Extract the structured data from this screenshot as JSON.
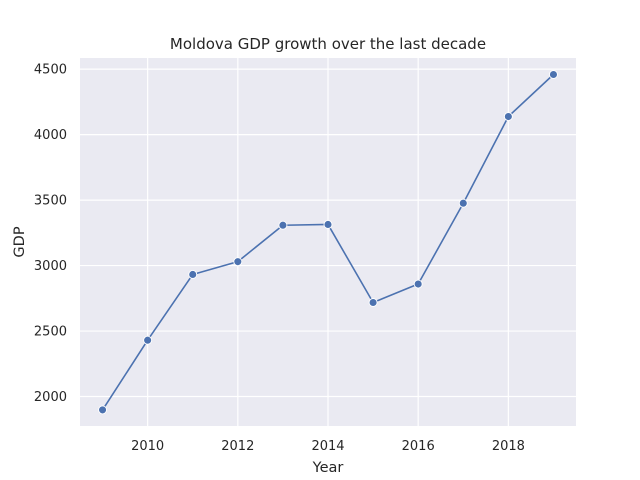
{
  "chart_data": {
    "type": "line",
    "title": "Moldova GDP growth over the last decade",
    "xlabel": "Year",
    "ylabel": "GDP",
    "x": [
      2009,
      2010,
      2011,
      2012,
      2013,
      2014,
      2015,
      2016,
      2017,
      2018,
      2019
    ],
    "series": [
      {
        "values": [
          1898,
          2430,
          2932,
          3030,
          3308,
          3314,
          2718,
          2859,
          3476,
          4138,
          4459
        ]
      }
    ],
    "xlim": [
      2008.5,
      2019.5
    ],
    "ylim": [
      1775,
      4585
    ],
    "xticks": [
      2010,
      2012,
      2014,
      2016,
      2018
    ],
    "yticks": [
      2000,
      2500,
      3000,
      3500,
      4000,
      4500
    ],
    "grid": true,
    "colors": {
      "line": "#4c72b0",
      "background": "#eaeaf2",
      "grid": "#ffffff"
    }
  }
}
